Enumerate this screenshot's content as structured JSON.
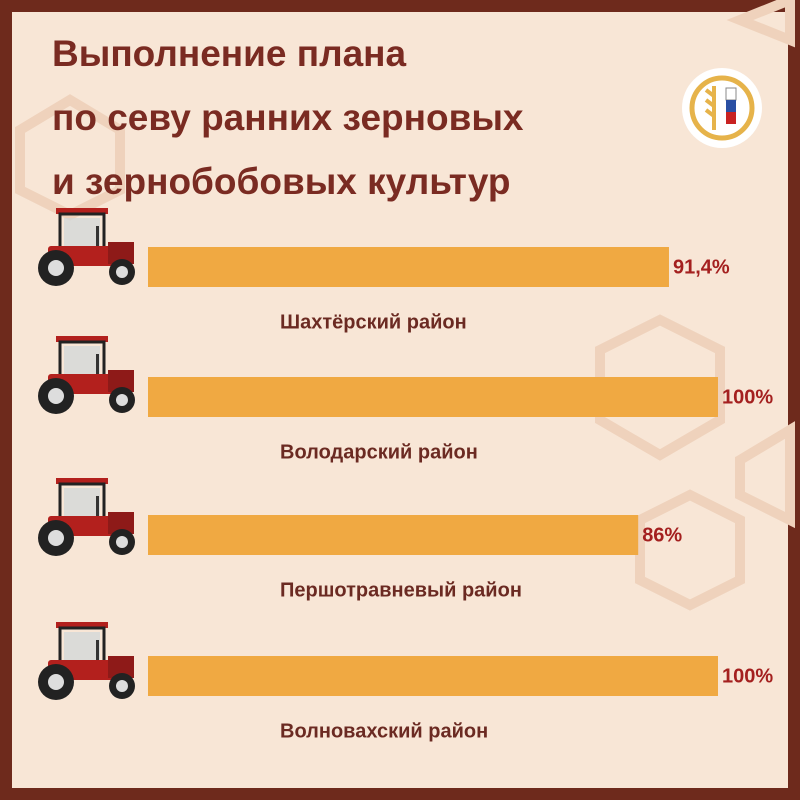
{
  "chart_data": {
    "type": "bar",
    "orientation": "horizontal",
    "title": [
      "Выполнение плана",
      "по севу ранних зерновых",
      "и зернобобовых культур"
    ],
    "categories": [
      "Шахтёрский район",
      "Володарский район",
      "Першотравневый район",
      "Волновахский район"
    ],
    "values": [
      91.4,
      100,
      86,
      100
    ],
    "value_labels": [
      "91,4%",
      "100%",
      "86%",
      "100%"
    ],
    "color": "#f0a942",
    "xlim": [
      0,
      100
    ]
  }
}
